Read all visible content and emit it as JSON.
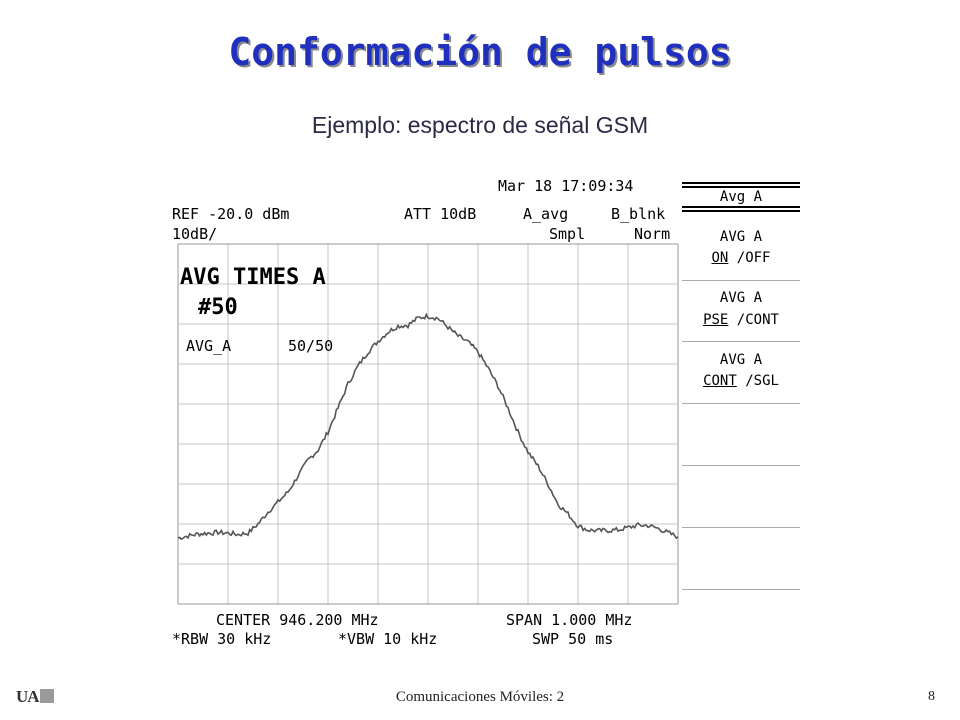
{
  "title": "Conformación de pulsos",
  "subtitle": "Ejemplo: espectro de señal GSM",
  "analyzer": {
    "timestamp": "Mar 18 17:09:34",
    "ref_level": "REF -20.0 dBm",
    "scale": "10dB/",
    "attenuation": "ATT 10dB",
    "trace_a": "A_avg",
    "trace_a_mode": "Smpl",
    "trace_b": "B_blnk",
    "trace_b_mode": "Norm",
    "avg_times": "AVG TIMES A",
    "avg_count": "#50",
    "avg_status_label": "AVG_A",
    "avg_status_value": "50/50",
    "center": "CENTER 946.200 MHz",
    "span": "SPAN 1.000 MHz",
    "rbw": "*RBW 30 kHz",
    "vbw": "*VBW 10 kHz",
    "sweep": "SWP 50 ms"
  },
  "softkeys": {
    "header": "Avg A",
    "key1_line1": "AVG A",
    "key1_on": "ON",
    "key1_rest": " /OFF",
    "key2_line1": "AVG A",
    "key2_pse": "PSE",
    "key2_rest": " /CONT",
    "key3_line1": "AVG A",
    "key3_cont": "CONT",
    "key3_rest": " /SGL"
  },
  "chart_data": {
    "type": "line",
    "x_unit": "MHz",
    "y_unit": "dBm",
    "xlim": [
      945.7,
      946.7
    ],
    "ylim": [
      -110,
      -20
    ],
    "x_divisions": 10,
    "y_divisions": 9,
    "grid": true,
    "series": [
      {
        "x": [
          945.7,
          945.72,
          945.74,
          945.76,
          945.78,
          945.8,
          945.82,
          945.84,
          945.86,
          945.88,
          945.9,
          945.92,
          945.94,
          945.96,
          945.98,
          946.0,
          946.02,
          946.04,
          946.06,
          946.08,
          946.1,
          946.12,
          946.14,
          946.16,
          946.18,
          946.2,
          946.22,
          946.24,
          946.26,
          946.28,
          946.3,
          946.32,
          946.34,
          946.36,
          946.38,
          946.4,
          946.42,
          946.44,
          946.46,
          946.48,
          946.5,
          946.52,
          946.54,
          946.56,
          946.58,
          946.6,
          946.62,
          946.64,
          946.66,
          946.68,
          946.7
        ],
        "y": [
          -93.5,
          -93,
          -92.5,
          -92.3,
          -92.1,
          -92.3,
          -92.6,
          -92.3,
          -90,
          -87,
          -84.5,
          -82,
          -78,
          -74,
          -71.5,
          -67,
          -61,
          -55,
          -50.5,
          -47,
          -44.3,
          -42,
          -40.5,
          -40.3,
          -38.5,
          -38,
          -38.6,
          -40.8,
          -43,
          -44.5,
          -47,
          -51,
          -55.5,
          -61,
          -67,
          -72,
          -75.5,
          -80,
          -85,
          -87.5,
          -90.5,
          -91.5,
          -91.7,
          -91.6,
          -91.5,
          -90.9,
          -90.3,
          -90.4,
          -91.1,
          -92.2,
          -93.2
        ]
      }
    ]
  }
}
